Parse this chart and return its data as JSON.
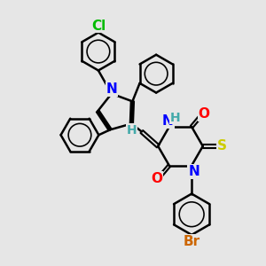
{
  "bg_color": "#e6e6e6",
  "atom_colors": {
    "N": "#0000ff",
    "O": "#ff0000",
    "S": "#cccc00",
    "Cl": "#00bb00",
    "Br": "#cc6600",
    "H_label": "#44aaaa",
    "C": "#000000"
  },
  "bond_color": "#000000",
  "bond_width": 1.8,
  "font_size_atoms": 11,
  "background": "#e6e6e6"
}
